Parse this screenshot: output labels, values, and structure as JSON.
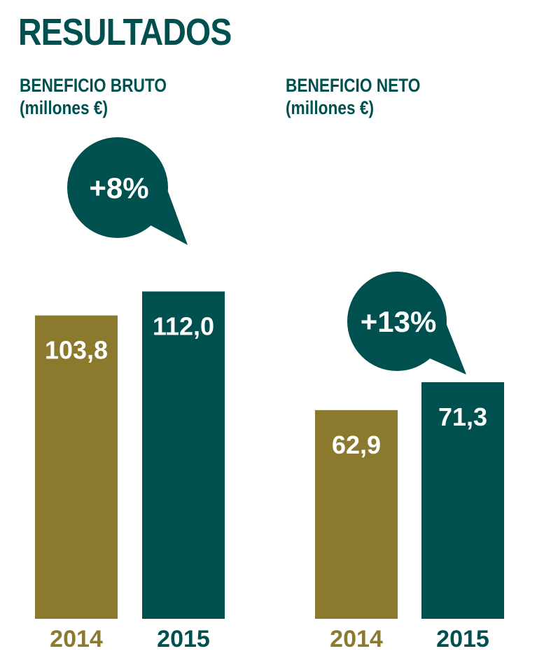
{
  "title": "RESULTADOS",
  "colors": {
    "title": "#00504f",
    "bar_2014": "#8b7a2e",
    "bar_2015": "#00504f",
    "year_2014": "#8b7a2e",
    "year_2015": "#00504f",
    "bubble": "#00504f"
  },
  "chart_data": [
    {
      "type": "bar",
      "title": "BENEFICIO BRUTO",
      "subtitle": "(millones €)",
      "categories": [
        "2014",
        "2015"
      ],
      "values": [
        103.8,
        112.0
      ],
      "value_labels": [
        "103,8",
        "112,0"
      ],
      "change_label": "+8%",
      "grid": false
    },
    {
      "type": "bar",
      "title": "BENEFICIO NETO",
      "subtitle": "(millones €)",
      "categories": [
        "2014",
        "2015"
      ],
      "values": [
        62.9,
        71.3
      ],
      "value_labels": [
        "62,9",
        "71,3"
      ],
      "change_label": "+13%",
      "grid": false
    }
  ]
}
